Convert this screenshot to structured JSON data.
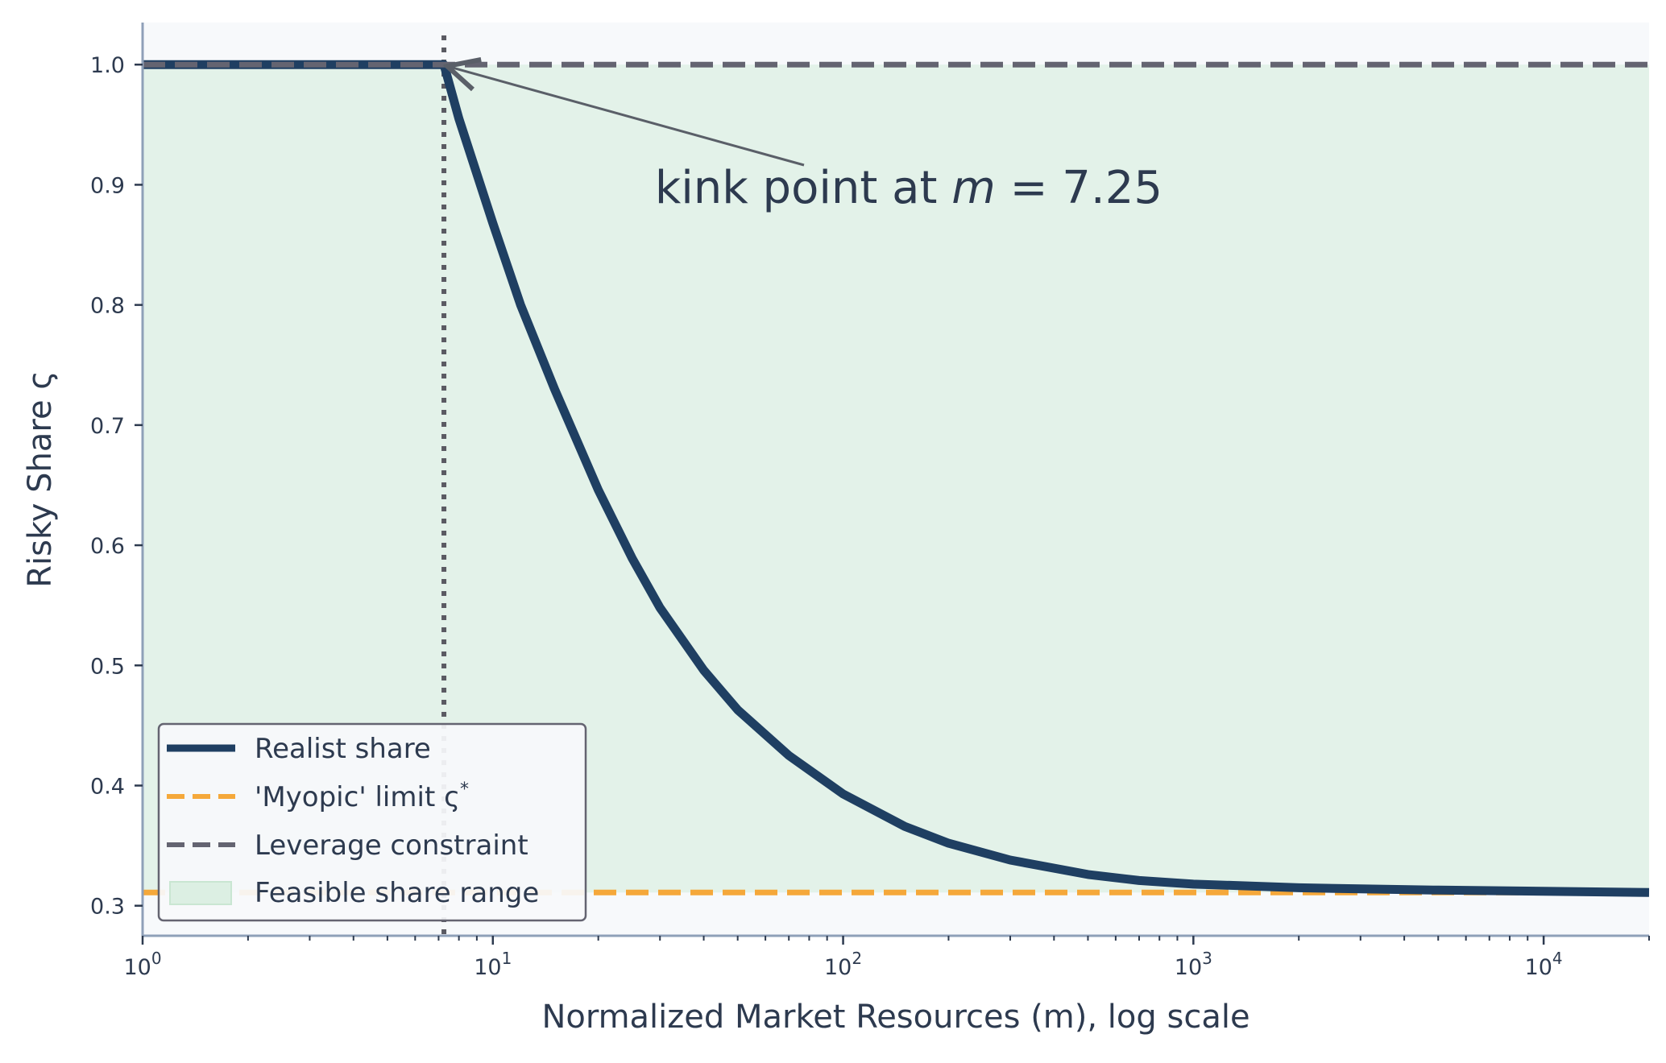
{
  "chart_data": {
    "type": "line",
    "title": "",
    "xlabel": "Normalized Market Resources (m), log scale",
    "ylabel": "Risky Share ς",
    "x_scale": "log",
    "xlim": [
      1,
      20000
    ],
    "ylim": [
      0.275,
      1.035
    ],
    "x_ticks": [
      1,
      10,
      100,
      1000,
      10000
    ],
    "x_tick_labels": [
      {
        "base": "10",
        "exp": "0"
      },
      {
        "base": "10",
        "exp": "1"
      },
      {
        "base": "10",
        "exp": "2"
      },
      {
        "base": "10",
        "exp": "3"
      },
      {
        "base": "10",
        "exp": "4"
      }
    ],
    "y_ticks": [
      0.3,
      0.4,
      0.5,
      0.6,
      0.7,
      0.8,
      0.9,
      1.0
    ],
    "y_tick_labels": [
      "0.3",
      "0.4",
      "0.5",
      "0.6",
      "0.7",
      "0.8",
      "0.9",
      "1.0"
    ],
    "grid": false,
    "legend_position": "lower-left",
    "series": [
      {
        "name": "Realist share",
        "style": "solid",
        "color": "#1f3f62",
        "x": [
          1,
          7.25,
          8,
          10,
          12,
          15,
          20,
          25,
          30,
          40,
          50,
          70,
          100,
          150,
          200,
          300,
          500,
          700,
          1000,
          2000,
          3000,
          5000,
          10000,
          20000
        ],
        "y": [
          1.0,
          1.0,
          0.955,
          0.868,
          0.8,
          0.73,
          0.646,
          0.589,
          0.548,
          0.496,
          0.463,
          0.425,
          0.393,
          0.366,
          0.352,
          0.338,
          0.326,
          0.321,
          0.318,
          0.315,
          0.314,
          0.313,
          0.312,
          0.311
        ]
      },
      {
        "name": "'Myopic' limit ς*",
        "style": "dashed",
        "color": "#f5a83a",
        "x": [
          1,
          20000
        ],
        "y": [
          0.311,
          0.311
        ]
      },
      {
        "name": "Leverage constraint",
        "style": "dashed",
        "color": "#646471",
        "x": [
          1,
          20000
        ],
        "y": [
          1.0,
          1.0
        ]
      }
    ],
    "shaded_regions": [
      {
        "name": "Feasible share range",
        "y_range": [
          0.311,
          1.0
        ],
        "color": "#dcefe3"
      }
    ],
    "reference_lines": [
      {
        "orientation": "vertical",
        "x": 7.25,
        "style": "dotted",
        "color": "#5a5a62"
      }
    ],
    "annotations": [
      {
        "prefix": "kink point at ",
        "math_var": "m",
        "suffix": " = 7.25",
        "point": {
          "x": 7.25,
          "y": 1.0
        },
        "text_anchor_data": {
          "x": 29,
          "y": 0.885
        }
      }
    ],
    "legend": [
      {
        "label": "Realist share",
        "symbol": "solid-line",
        "color": "#1f3f62"
      },
      {
        "label_prefix": "'Myopic' limit ς",
        "label_sup": "*",
        "symbol": "dashed-line",
        "color": "#f5a83a"
      },
      {
        "label": "Leverage constraint",
        "symbol": "dashed-line",
        "color": "#646471"
      },
      {
        "label": "Feasible share range",
        "symbol": "patch",
        "color": "#dcefe3"
      }
    ]
  }
}
